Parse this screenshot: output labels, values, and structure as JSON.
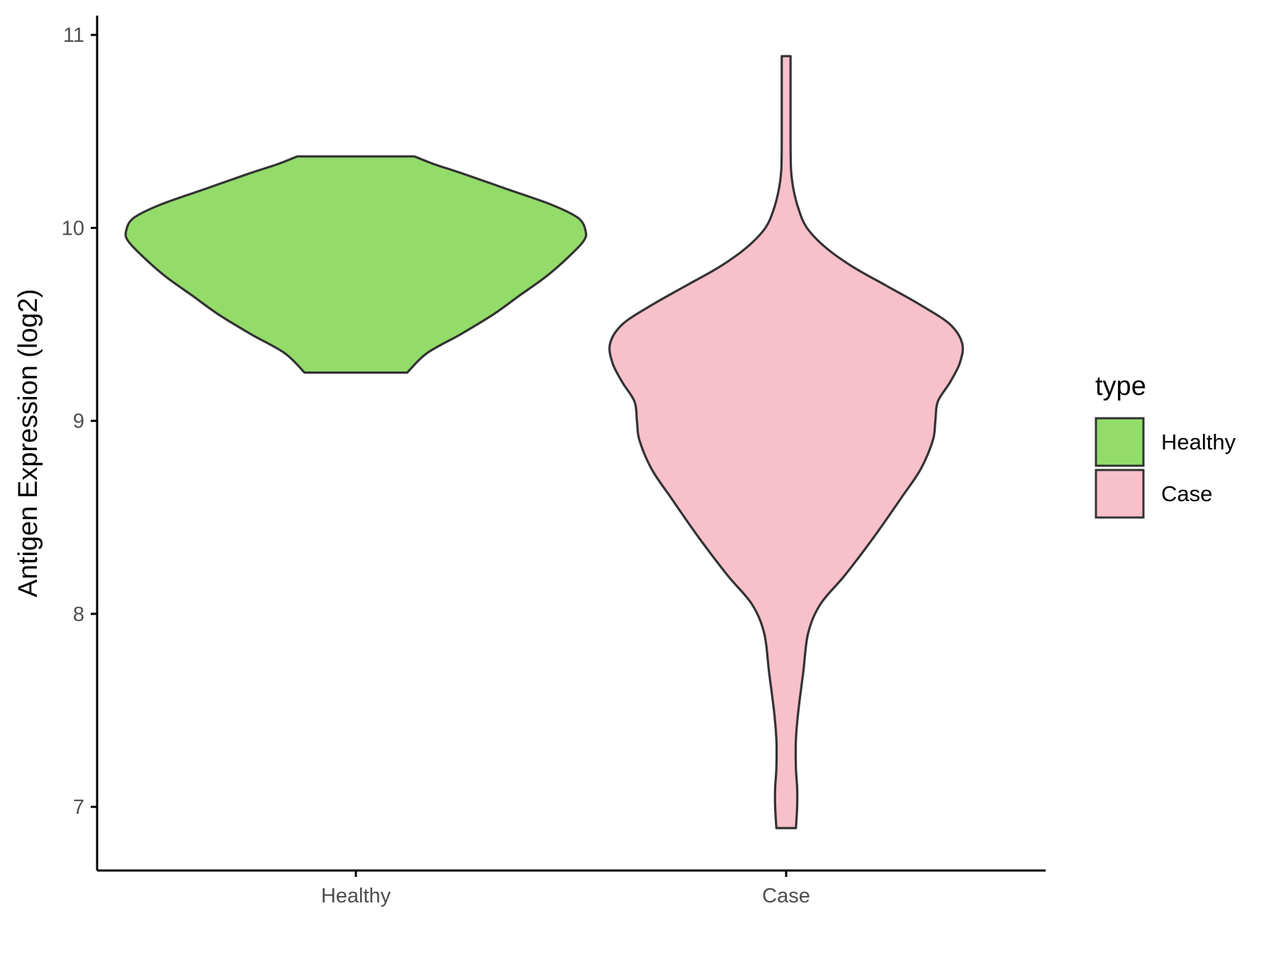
{
  "chart_data": {
    "type": "violin",
    "ylabel": "Antigen Expression (log2)",
    "xlabel": "",
    "ylim": [
      6.67,
      11.1
    ],
    "yticks": [
      7,
      8,
      9,
      10,
      11
    ],
    "categories": [
      "Healthy",
      "Case"
    ],
    "legend": {
      "title": "type",
      "position": "right",
      "entries": [
        {
          "label": "Healthy",
          "color": "#93dc6a"
        },
        {
          "label": "Case",
          "color": "#f8c0cb"
        }
      ]
    },
    "grid": false,
    "series": [
      {
        "category": "Healthy",
        "color": "#93dc6a",
        "min": 9.25,
        "max": 10.37,
        "density": [
          {
            "y": 9.25,
            "w": 0.21
          },
          {
            "y": 9.35,
            "w": 0.29
          },
          {
            "y": 9.45,
            "w": 0.43
          },
          {
            "y": 9.55,
            "w": 0.56
          },
          {
            "y": 9.65,
            "w": 0.67
          },
          {
            "y": 9.75,
            "w": 0.78
          },
          {
            "y": 9.85,
            "w": 0.87
          },
          {
            "y": 9.93,
            "w": 0.93
          },
          {
            "y": 9.98,
            "w": 0.94
          },
          {
            "y": 10.05,
            "w": 0.91
          },
          {
            "y": 10.12,
            "w": 0.8
          },
          {
            "y": 10.2,
            "w": 0.62
          },
          {
            "y": 10.28,
            "w": 0.44
          },
          {
            "y": 10.33,
            "w": 0.32
          },
          {
            "y": 10.37,
            "w": 0.24
          }
        ]
      },
      {
        "category": "Case",
        "color": "#f8c0cb",
        "min": 6.89,
        "max": 10.89,
        "density": [
          {
            "y": 6.89,
            "w": 0.04
          },
          {
            "y": 7.0,
            "w": 0.045
          },
          {
            "y": 7.1,
            "w": 0.045
          },
          {
            "y": 7.2,
            "w": 0.04
          },
          {
            "y": 7.35,
            "w": 0.04
          },
          {
            "y": 7.5,
            "w": 0.05
          },
          {
            "y": 7.7,
            "w": 0.07
          },
          {
            "y": 7.9,
            "w": 0.09
          },
          {
            "y": 8.05,
            "w": 0.14
          },
          {
            "y": 8.2,
            "w": 0.24
          },
          {
            "y": 8.4,
            "w": 0.36
          },
          {
            "y": 8.6,
            "w": 0.47
          },
          {
            "y": 8.75,
            "w": 0.55
          },
          {
            "y": 8.9,
            "w": 0.6
          },
          {
            "y": 9.0,
            "w": 0.61
          },
          {
            "y": 9.1,
            "w": 0.62
          },
          {
            "y": 9.2,
            "w": 0.67
          },
          {
            "y": 9.3,
            "w": 0.71
          },
          {
            "y": 9.4,
            "w": 0.72
          },
          {
            "y": 9.5,
            "w": 0.67
          },
          {
            "y": 9.6,
            "w": 0.55
          },
          {
            "y": 9.7,
            "w": 0.41
          },
          {
            "y": 9.8,
            "w": 0.27
          },
          {
            "y": 9.9,
            "w": 0.16
          },
          {
            "y": 10.0,
            "w": 0.085
          },
          {
            "y": 10.1,
            "w": 0.05
          },
          {
            "y": 10.2,
            "w": 0.03
          },
          {
            "y": 10.3,
            "w": 0.02
          },
          {
            "y": 10.45,
            "w": 0.018
          },
          {
            "y": 10.6,
            "w": 0.018
          },
          {
            "y": 10.75,
            "w": 0.018
          },
          {
            "y": 10.89,
            "w": 0.018
          }
        ]
      }
    ]
  }
}
